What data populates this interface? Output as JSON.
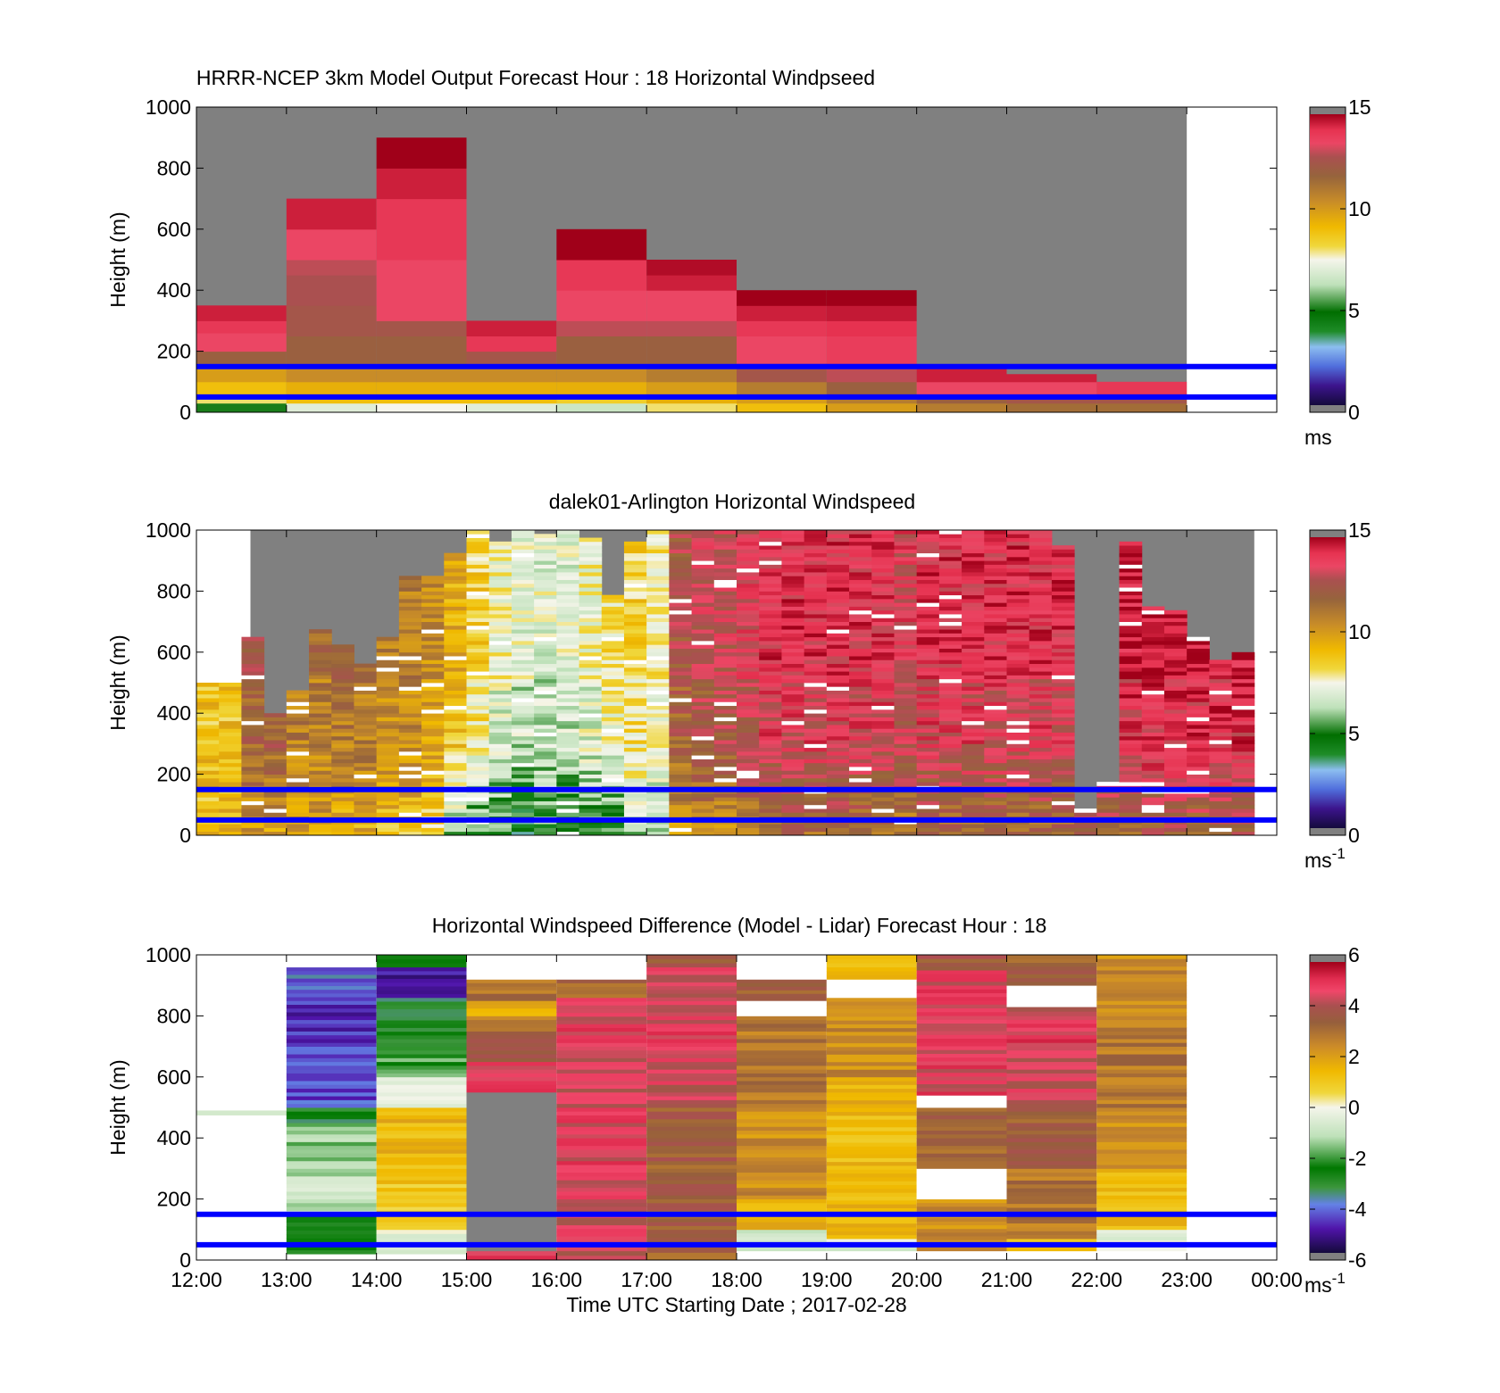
{
  "figure": {
    "xlabel": "Time UTC  Starting Date ; 2017-02-28",
    "x_ticks": [
      "12:00",
      "13:00",
      "14:00",
      "15:00",
      "16:00",
      "17:00",
      "18:00",
      "19:00",
      "20:00",
      "21:00",
      "22:00",
      "23:00",
      "00:00"
    ]
  },
  "chart_data": [
    {
      "type": "heatmap",
      "title": "HRRR-NCEP 3km Model Output   Forecast Hour : 18 Horizontal Windpseed",
      "ylabel": "Height (m)",
      "ylim": [
        0,
        1000
      ],
      "yticks": [
        "0",
        "200",
        "400",
        "600",
        "800",
        "1000"
      ],
      "colorbar": {
        "ticks": [
          "0",
          "5",
          "10",
          "15"
        ],
        "range": [
          0,
          15
        ],
        "unit": "ms",
        "unit_sup": "",
        "palette": "speed"
      },
      "reference_lines_m": [
        150,
        50
      ],
      "columns": [
        {
          "hour": 12,
          "top": 350,
          "cells": [
            [
              0,
              30,
              5
            ],
            [
              30,
              60,
              8
            ],
            [
              60,
              100,
              9
            ],
            [
              100,
              160,
              10
            ],
            [
              160,
              200,
              12
            ],
            [
              200,
              260,
              13.5
            ],
            [
              260,
              300,
              14
            ],
            [
              300,
              350,
              14.5
            ]
          ]
        },
        {
          "hour": 13,
          "top": 700,
          "cells": [
            [
              0,
              30,
              7
            ],
            [
              30,
              60,
              9
            ],
            [
              60,
              100,
              9.5
            ],
            [
              100,
              160,
              10.5
            ],
            [
              160,
              250,
              12
            ],
            [
              250,
              350,
              12.5
            ],
            [
              350,
              450,
              12.8
            ],
            [
              450,
              500,
              13
            ],
            [
              500,
              600,
              13.5
            ],
            [
              600,
              700,
              14.5
            ]
          ]
        },
        {
          "hour": 14,
          "top": 900,
          "cells": [
            [
              0,
              30,
              7.5
            ],
            [
              30,
              60,
              9
            ],
            [
              60,
              100,
              9.5
            ],
            [
              100,
              160,
              10.5
            ],
            [
              160,
              250,
              12
            ],
            [
              250,
              300,
              12.5
            ],
            [
              300,
              400,
              13.5
            ],
            [
              400,
              500,
              13.5
            ],
            [
              500,
              600,
              14
            ],
            [
              600,
              700,
              14
            ],
            [
              700,
              800,
              14.5
            ],
            [
              800,
              900,
              15
            ]
          ]
        },
        {
          "hour": 15,
          "top": 300,
          "cells": [
            [
              0,
              30,
              7
            ],
            [
              30,
              60,
              9
            ],
            [
              60,
              100,
              9.5
            ],
            [
              100,
              160,
              10.5
            ],
            [
              160,
              200,
              12.5
            ],
            [
              200,
              250,
              14
            ],
            [
              250,
              300,
              14.5
            ]
          ]
        },
        {
          "hour": 16,
          "top": 600,
          "cells": [
            [
              0,
              30,
              6.5
            ],
            [
              30,
              60,
              8.5
            ],
            [
              60,
              100,
              9.5
            ],
            [
              100,
              160,
              10.5
            ],
            [
              160,
              250,
              12
            ],
            [
              250,
              300,
              13
            ],
            [
              300,
              400,
              13.5
            ],
            [
              400,
              500,
              14
            ],
            [
              500,
              600,
              15
            ]
          ]
        },
        {
          "hour": 17,
          "top": 500,
          "cells": [
            [
              0,
              30,
              8
            ],
            [
              30,
              60,
              9.5
            ],
            [
              60,
              100,
              10
            ],
            [
              100,
              160,
              11
            ],
            [
              160,
              250,
              12
            ],
            [
              250,
              300,
              13
            ],
            [
              300,
              400,
              13.5
            ],
            [
              400,
              450,
              14.5
            ],
            [
              450,
              500,
              14.8
            ]
          ]
        },
        {
          "hour": 18,
          "top": 400,
          "cells": [
            [
              0,
              30,
              9
            ],
            [
              30,
              60,
              10
            ],
            [
              60,
              100,
              11
            ],
            [
              100,
              160,
              12.5
            ],
            [
              160,
              250,
              13.5
            ],
            [
              250,
              300,
              14
            ],
            [
              300,
              350,
              14.5
            ],
            [
              350,
              400,
              15
            ]
          ]
        },
        {
          "hour": 19,
          "top": 400,
          "cells": [
            [
              0,
              30,
              10
            ],
            [
              30,
              60,
              11
            ],
            [
              60,
              100,
              12
            ],
            [
              100,
              160,
              13
            ],
            [
              160,
              250,
              13.8
            ],
            [
              250,
              300,
              14.2
            ],
            [
              300,
              350,
              14.6
            ],
            [
              350,
              400,
              15
            ]
          ]
        },
        {
          "hour": 20,
          "top": 150,
          "cells": [
            [
              0,
              30,
              11
            ],
            [
              30,
              60,
              12
            ],
            [
              60,
              100,
              13.5
            ],
            [
              100,
              150,
              14.5
            ]
          ]
        },
        {
          "hour": 21,
          "top": 125,
          "cells": [
            [
              0,
              30,
              11.5
            ],
            [
              30,
              60,
              12.5
            ],
            [
              60,
              100,
              13.5
            ],
            [
              100,
              125,
              14.5
            ]
          ]
        },
        {
          "hour": 22,
          "top": 100,
          "cells": [
            [
              0,
              30,
              11.5
            ],
            [
              30,
              60,
              12.5
            ],
            [
              60,
              100,
              14
            ]
          ]
        }
      ]
    },
    {
      "type": "heatmap",
      "title": "dalek01-Arlington  Horizontal Windspeed",
      "ylabel": "Height (m)",
      "ylim": [
        0,
        1000
      ],
      "yticks": [
        "0",
        "200",
        "400",
        "600",
        "800",
        "1000"
      ],
      "colorbar": {
        "ticks": [
          "0",
          "5",
          "10",
          "15"
        ],
        "range": [
          0,
          15
        ],
        "unit": "ms",
        "unit_sup": "-1",
        "palette": "speed"
      },
      "reference_lines_m": [
        150,
        50
      ],
      "interval_minutes": 15,
      "profile_tops": [
        500,
        490,
        650,
        390,
        470,
        670,
        615,
        560,
        645,
        845,
        850,
        920,
        990,
        960,
        990,
        985,
        1000,
        970,
        785,
        960,
        1000,
        1000,
        990,
        1000,
        1000,
        1000,
        1000,
        1000,
        1000,
        1000,
        1000,
        1000,
        1000,
        1000,
        1000,
        1000,
        1000,
        1000,
        940,
        80,
        170,
        960,
        750,
        730,
        640,
        570,
        600
      ],
      "profile_centers": [
        9,
        9,
        12,
        12,
        11,
        11,
        11,
        11,
        10.5,
        10.5,
        10,
        9,
        8,
        7,
        6.5,
        6.5,
        6.5,
        7,
        7.5,
        8,
        7.5,
        12,
        12.5,
        12.5,
        13,
        13.5,
        13.5,
        13.5,
        13.5,
        13.5,
        13.5,
        13,
        13.5,
        13.5,
        13.5,
        13.5,
        13.5,
        13.5,
        13.5,
        14,
        14,
        14,
        14,
        14,
        14,
        14,
        14
      ],
      "profile_lows": [
        9,
        9,
        10,
        10,
        10,
        10,
        9.5,
        9.5,
        9,
        9,
        8,
        6,
        5,
        5,
        4,
        5,
        5,
        5,
        5,
        6,
        6,
        10,
        10.5,
        10.5,
        11,
        11.5,
        11.5,
        11.5,
        11.5,
        11.5,
        11.5,
        11,
        11.5,
        11.5,
        11.5,
        11.5,
        11.5,
        11.5,
        11.5,
        12,
        12,
        12,
        12,
        12,
        12,
        12,
        12
      ]
    },
    {
      "type": "heatmap",
      "title": "Horizontal Windspeed Difference (Model - Lidar) Forecast Hour : 18",
      "ylabel": "Height (m)",
      "ylim": [
        0,
        1000
      ],
      "yticks": [
        "0",
        "200",
        "400",
        "600",
        "800",
        "1000"
      ],
      "colorbar": {
        "ticks": [
          "-6",
          "-4",
          "-2",
          "0",
          "2",
          "4",
          "6"
        ],
        "range": [
          -6,
          6
        ],
        "unit": "ms",
        "unit_sup": "-1",
        "palette": "diff"
      },
      "reference_lines_m": [
        150,
        50
      ],
      "columns": [
        {
          "hour": 12,
          "cells": [
            [
              475,
              490,
              -0.5
            ]
          ]
        },
        {
          "hour": 13,
          "cells": [
            [
              20,
              150,
              -2.5
            ],
            [
              150,
              300,
              -1
            ],
            [
              300,
              450,
              -1.5
            ],
            [
              450,
              500,
              -3
            ],
            [
              500,
              700,
              -4.5
            ],
            [
              700,
              850,
              -4.8
            ],
            [
              850,
              960,
              -4.2
            ],
            [
              960,
              1000,
              0
            ]
          ]
        },
        {
          "hour": 14,
          "cells": [
            [
              20,
              100,
              -0.5
            ],
            [
              100,
              250,
              1
            ],
            [
              250,
              500,
              1.5
            ],
            [
              500,
              600,
              -0.5
            ],
            [
              600,
              700,
              -2
            ],
            [
              700,
              860,
              -3
            ],
            [
              860,
              960,
              -5
            ],
            [
              960,
              1000,
              -3
            ]
          ]
        },
        {
          "hour": 15,
          "cells": [
            [
              0,
              30,
              5
            ],
            [
              30,
              550,
              6
            ],
            [
              550,
              650,
              5
            ],
            [
              650,
              750,
              4
            ],
            [
              750,
              800,
              3
            ],
            [
              800,
              850,
              2
            ],
            [
              850,
              920,
              3
            ],
            [
              920,
              1000,
              0
            ]
          ]
        },
        {
          "hour": 16,
          "cells": [
            [
              0,
              30,
              4
            ],
            [
              30,
              200,
              4.5
            ],
            [
              200,
              500,
              4.8
            ],
            [
              500,
              700,
              4.5
            ],
            [
              700,
              860,
              4.8
            ],
            [
              860,
              920,
              3.5
            ],
            [
              920,
              1000,
              0
            ]
          ]
        },
        {
          "hour": 17,
          "cells": [
            [
              0,
              150,
              3.5
            ],
            [
              150,
              500,
              3.6
            ],
            [
              500,
              650,
              4.5
            ],
            [
              650,
              800,
              4.8
            ],
            [
              800,
              960,
              4.6
            ],
            [
              960,
              1000,
              3.8
            ]
          ]
        },
        {
          "hour": 18,
          "cells": [
            [
              30,
              100,
              -0.5
            ],
            [
              100,
              200,
              1.5
            ],
            [
              200,
              500,
              2.5
            ],
            [
              500,
              800,
              3
            ],
            [
              800,
              850,
              0
            ],
            [
              850,
              920,
              3.5
            ],
            [
              920,
              1000,
              0
            ]
          ]
        },
        {
          "hour": 19,
          "cells": [
            [
              30,
              70,
              -0.5
            ],
            [
              70,
              600,
              1.5
            ],
            [
              600,
              860,
              2.5
            ],
            [
              860,
              920,
              0
            ],
            [
              920,
              1000,
              1.5
            ]
          ]
        },
        {
          "hour": 20,
          "cells": [
            [
              30,
              200,
              2.5
            ],
            [
              200,
              300,
              0
            ],
            [
              300,
              500,
              3.5
            ],
            [
              500,
              540,
              0
            ],
            [
              540,
              950,
              4.8
            ],
            [
              950,
              1000,
              3.8
            ]
          ]
        },
        {
          "hour": 21,
          "cells": [
            [
              30,
              70,
              1.5
            ],
            [
              70,
              300,
              3
            ],
            [
              300,
              500,
              3.5
            ],
            [
              500,
              700,
              4.5
            ],
            [
              700,
              800,
              5
            ],
            [
              800,
              830,
              4.5
            ],
            [
              830,
              900,
              0
            ],
            [
              900,
              1000,
              3.5
            ]
          ]
        },
        {
          "hour": 22,
          "cells": [
            [
              30,
              100,
              -0.5
            ],
            [
              100,
              300,
              1.5
            ],
            [
              300,
              500,
              2.5
            ],
            [
              500,
              800,
              3
            ],
            [
              800,
              1000,
              2.5
            ]
          ]
        }
      ]
    }
  ]
}
